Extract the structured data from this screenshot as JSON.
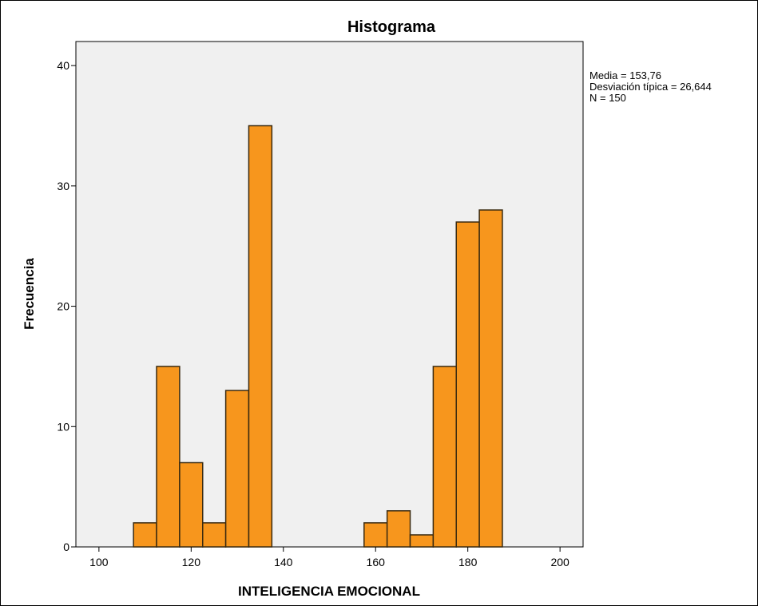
{
  "chart_data": {
    "type": "bar",
    "title": "Histograma",
    "xlabel": "INTELIGENCIA EMOCIONAL",
    "ylabel": "Frecuencia",
    "bin_width": 5,
    "x_start": 107.5,
    "values": [
      2,
      15,
      7,
      2,
      13,
      35,
      0,
      0,
      0,
      0,
      2,
      3,
      1,
      15,
      27,
      28
    ],
    "xlim": [
      95,
      205
    ],
    "ylim": [
      0,
      42
    ],
    "xticks": [
      100,
      120,
      140,
      160,
      180,
      200
    ],
    "yticks": [
      0,
      10,
      20,
      30,
      40
    ],
    "grid": false,
    "colors": {
      "bar_fill": "#f7961d",
      "bar_stroke": "#3a2a10",
      "plot_bg": "#f0f0f0"
    },
    "annotations": [
      "Media = 153,76",
      "Desviación típica = 26,644",
      "N = 150"
    ]
  }
}
